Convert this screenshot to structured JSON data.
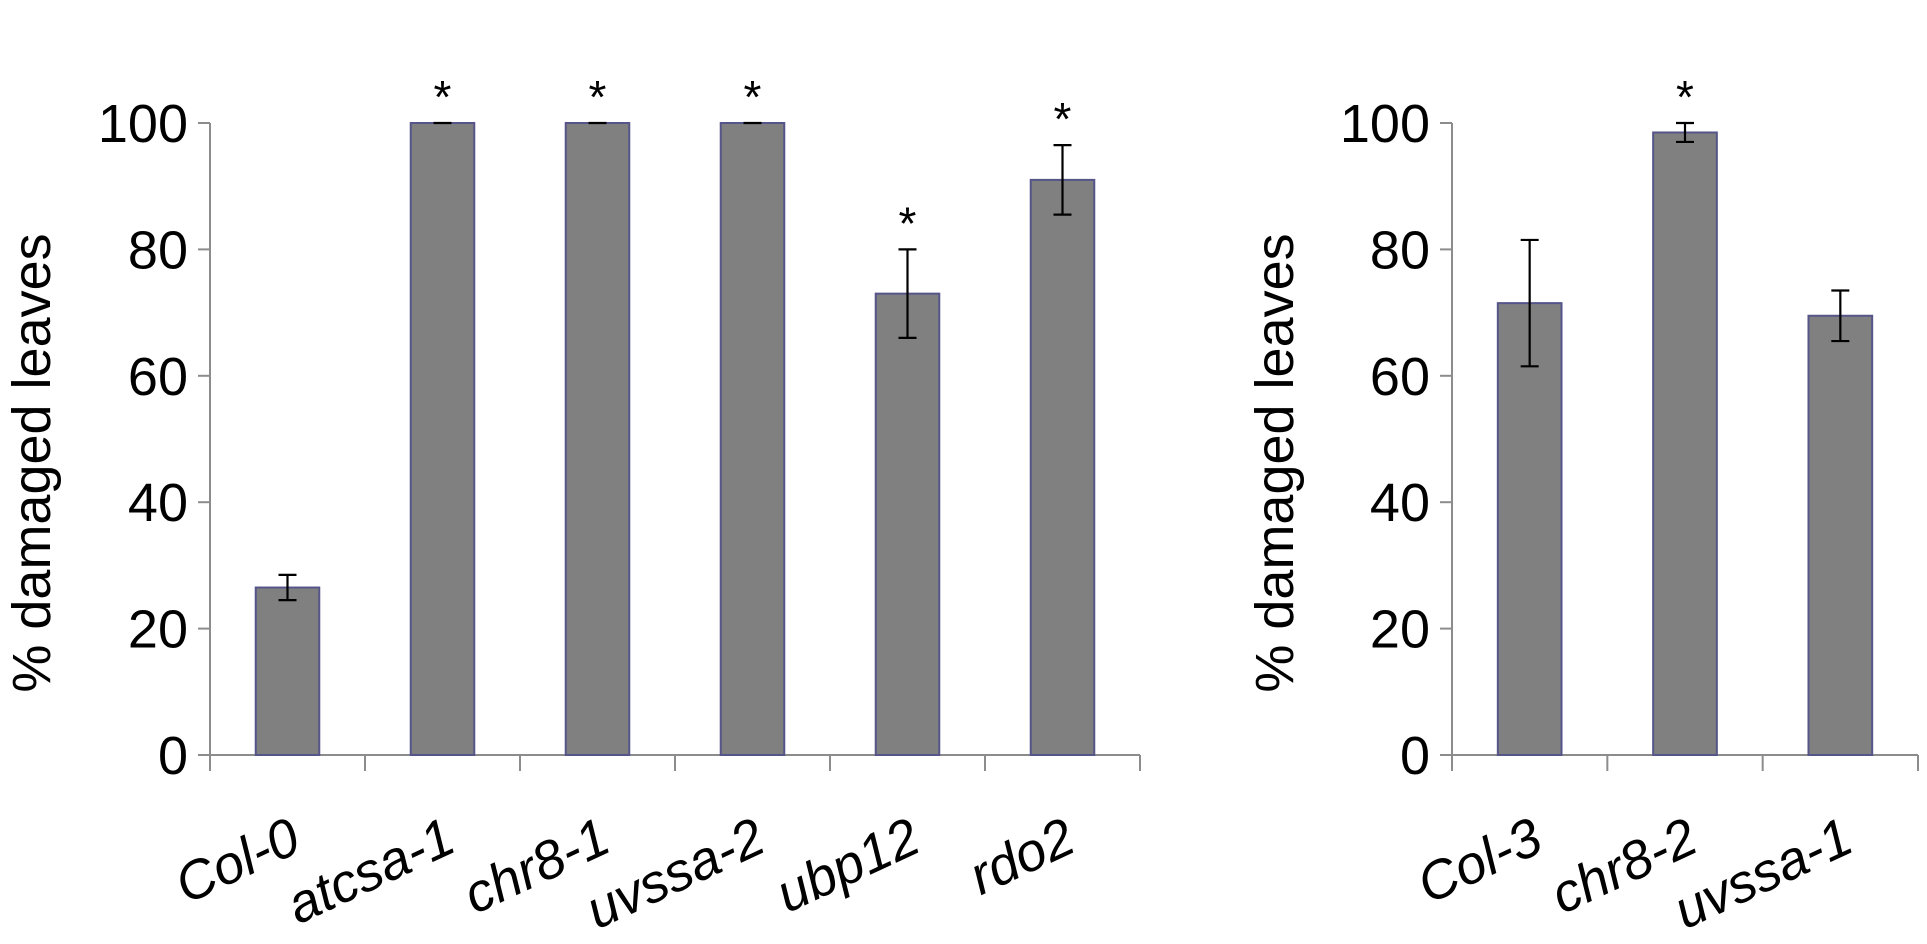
{
  "chart_data": [
    {
      "type": "bar",
      "ylabel": "% damaged leaves",
      "ylim": [
        0,
        100
      ],
      "yticks": [
        "0",
        "20",
        "40",
        "60",
        "80",
        "100"
      ],
      "categories": [
        "Col-0",
        "atcsa-1",
        "chr8-1",
        "uvssa-2",
        "ubp12",
        "rdo2"
      ],
      "values": [
        26.5,
        100,
        100,
        100,
        73,
        91
      ],
      "errors": [
        2,
        0,
        0,
        0,
        7,
        5.5
      ],
      "significance": [
        "",
        "*",
        "*",
        "*",
        "*",
        "*"
      ],
      "bar_color": "#808080",
      "bar_edge_color": "#55558a",
      "axis_color": "#8c8c8c",
      "grid": false
    },
    {
      "type": "bar",
      "ylabel": "% damaged leaves",
      "ylim": [
        0,
        100
      ],
      "yticks": [
        "0",
        "20",
        "40",
        "60",
        "80",
        "100"
      ],
      "categories": [
        "Col-3",
        "chr8-2",
        "uvssa-1"
      ],
      "values": [
        71.5,
        98.5,
        69.5
      ],
      "errors": [
        10,
        1.5,
        4
      ],
      "significance": [
        "",
        "*",
        ""
      ],
      "bar_color": "#808080",
      "bar_edge_color": "#55558a",
      "axis_color": "#8c8c8c",
      "grid": false
    }
  ]
}
